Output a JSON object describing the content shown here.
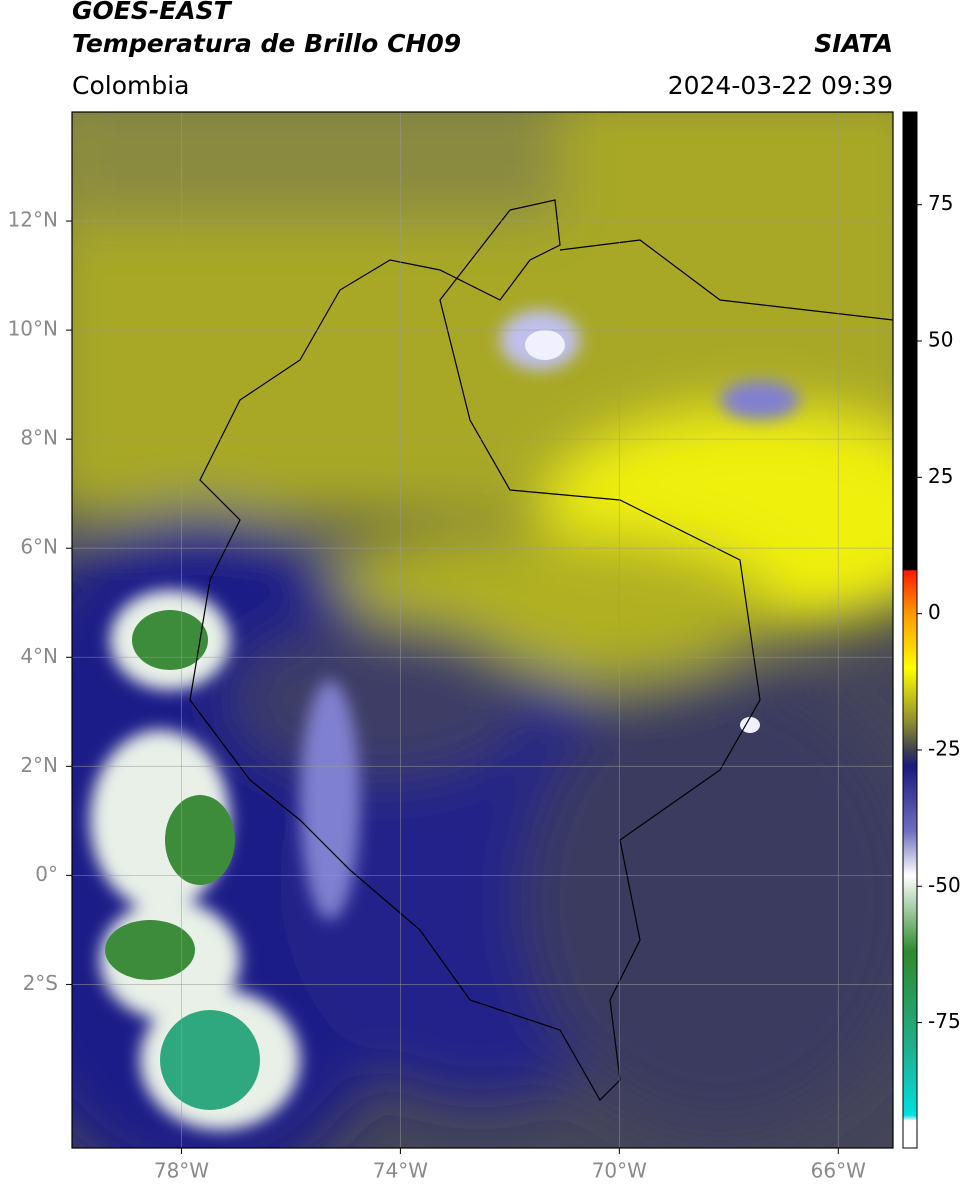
{
  "header": {
    "satellite": "GOES-EAST",
    "product": "Temperatura de Brillo CH09",
    "source": "SIATA",
    "region": "Colombia",
    "datetime": "2024-03-22 09:39"
  },
  "map": {
    "lonlim": [
      -80,
      -65
    ],
    "latlim": [
      -5,
      14
    ],
    "lonticks": [
      {
        "value": -78,
        "label": "78°W"
      },
      {
        "value": -74,
        "label": "74°W"
      },
      {
        "value": -70,
        "label": "70°W"
      },
      {
        "value": -66,
        "label": "66°W"
      }
    ],
    "latticks": [
      {
        "value": 12,
        "label": "12°N"
      },
      {
        "value": 10,
        "label": "10°N"
      },
      {
        "value": 8,
        "label": "8°N"
      },
      {
        "value": 6,
        "label": "6°N"
      },
      {
        "value": 4,
        "label": "4°N"
      },
      {
        "value": 2,
        "label": "2°N"
      },
      {
        "value": 0,
        "label": "0°"
      },
      {
        "value": -2,
        "label": "2°S"
      }
    ],
    "grid": true
  },
  "colorbar": {
    "lim": [
      -98,
      92
    ],
    "ticks": [
      75,
      50,
      25,
      0,
      -25,
      -50,
      -75
    ],
    "colormap": [
      {
        "value": 92,
        "color": "#000000"
      },
      {
        "value": 8,
        "color": "#000000"
      },
      {
        "value": 7.9,
        "color": "#ff1a00"
      },
      {
        "value": 0,
        "color": "#ff9900"
      },
      {
        "value": -10,
        "color": "#ffff00"
      },
      {
        "value": -20,
        "color": "#8c8c30"
      },
      {
        "value": -25,
        "color": "#404050"
      },
      {
        "value": -28,
        "color": "#1a1a80"
      },
      {
        "value": -40,
        "color": "#7070c0"
      },
      {
        "value": -48,
        "color": "#ffffff"
      },
      {
        "value": -62,
        "color": "#2e8a2e"
      },
      {
        "value": -80,
        "color": "#20b090"
      },
      {
        "value": -92,
        "color": "#00e0e0"
      },
      {
        "value": -93,
        "color": "#ffffff"
      },
      {
        "value": -98,
        "color": "#ffffff"
      }
    ]
  }
}
